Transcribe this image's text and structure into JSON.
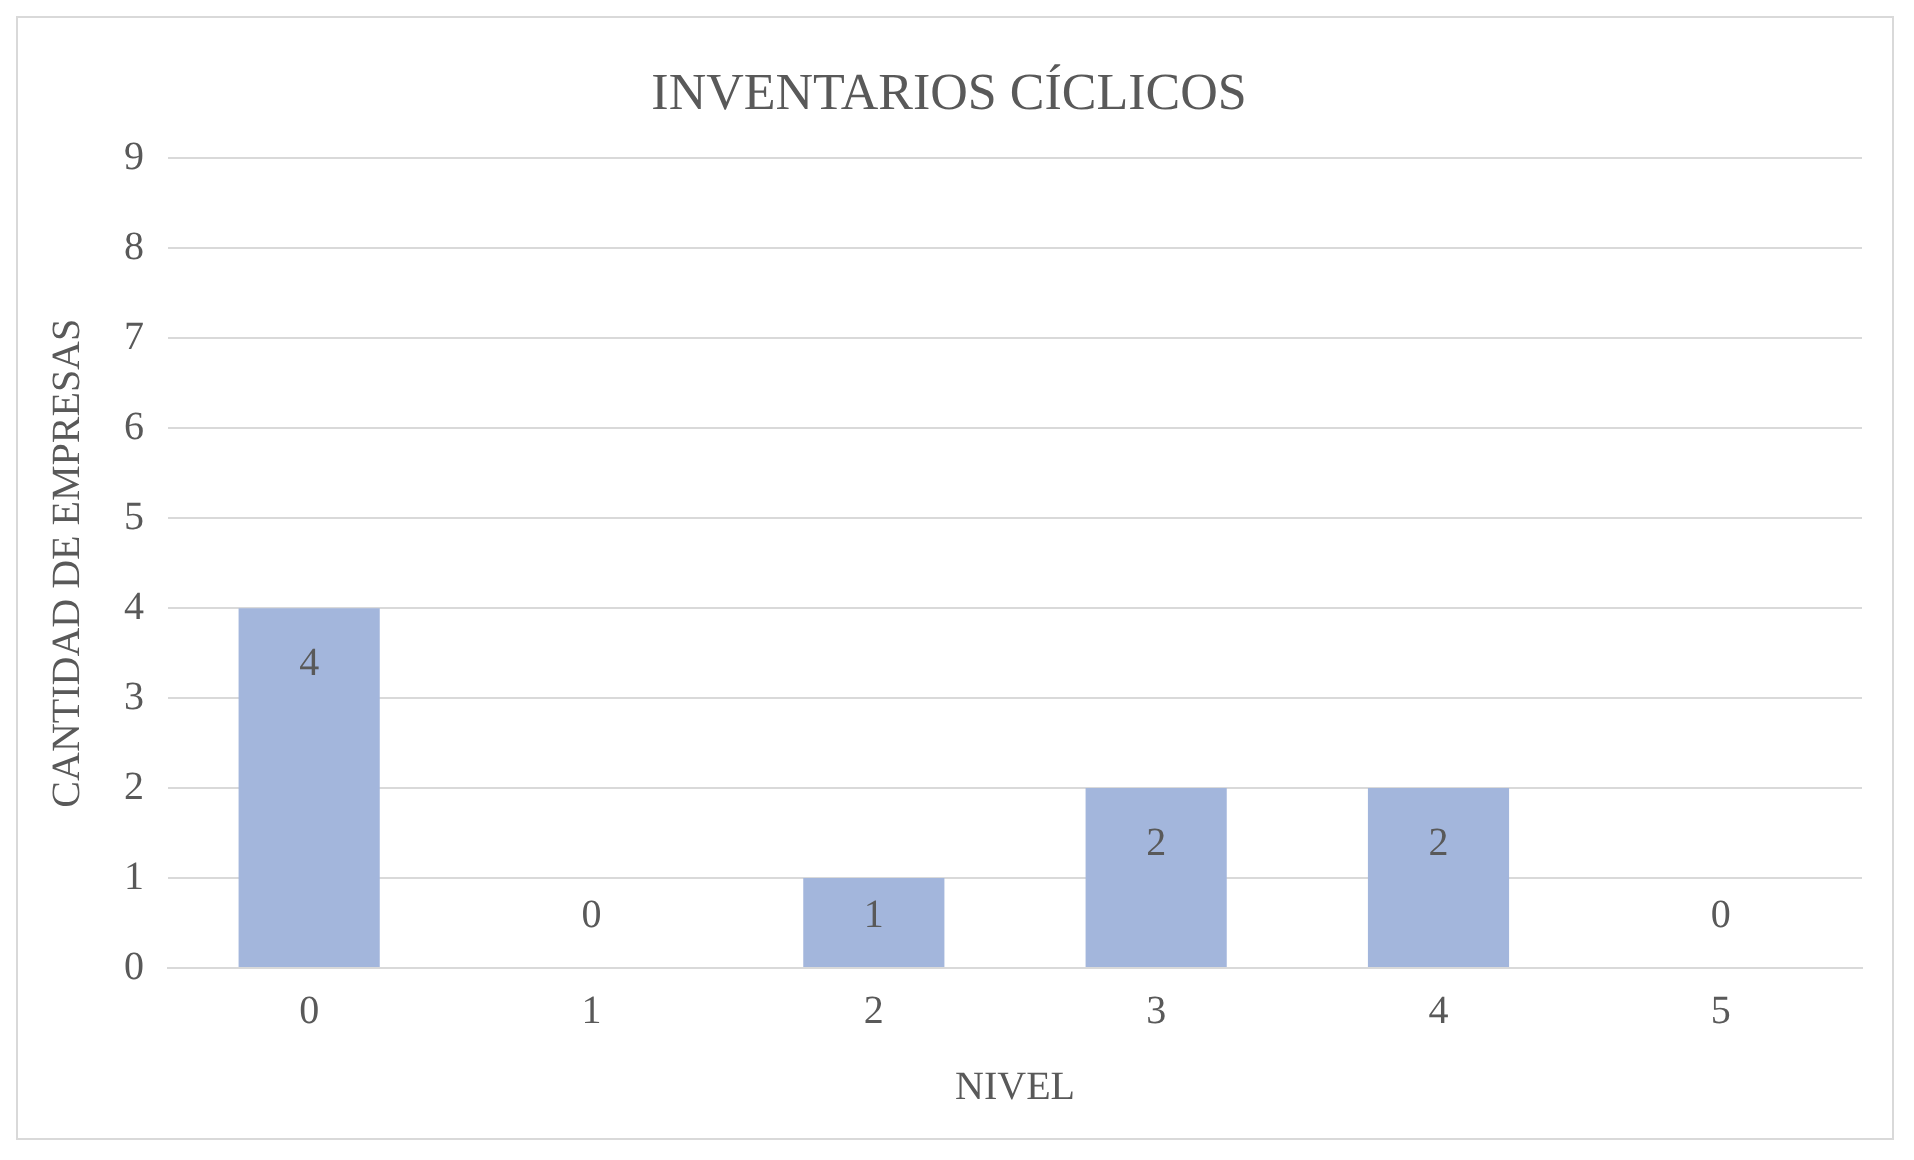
{
  "chart_data": {
    "type": "bar",
    "title": "INVENTARIOS CÍCLICOS",
    "xlabel": "NIVEL",
    "ylabel": "CANTIDAD DE EMPRESAS",
    "categories": [
      "0",
      "1",
      "2",
      "3",
      "4",
      "5"
    ],
    "values": [
      4,
      0,
      1,
      2,
      2,
      0
    ],
    "color": "#a3b6dc",
    "ylim": [
      0,
      9
    ],
    "yticks": [
      0,
      1,
      2,
      3,
      4,
      5,
      6,
      7,
      8,
      9
    ],
    "grid": "y",
    "data_labels": true,
    "legend": false
  }
}
